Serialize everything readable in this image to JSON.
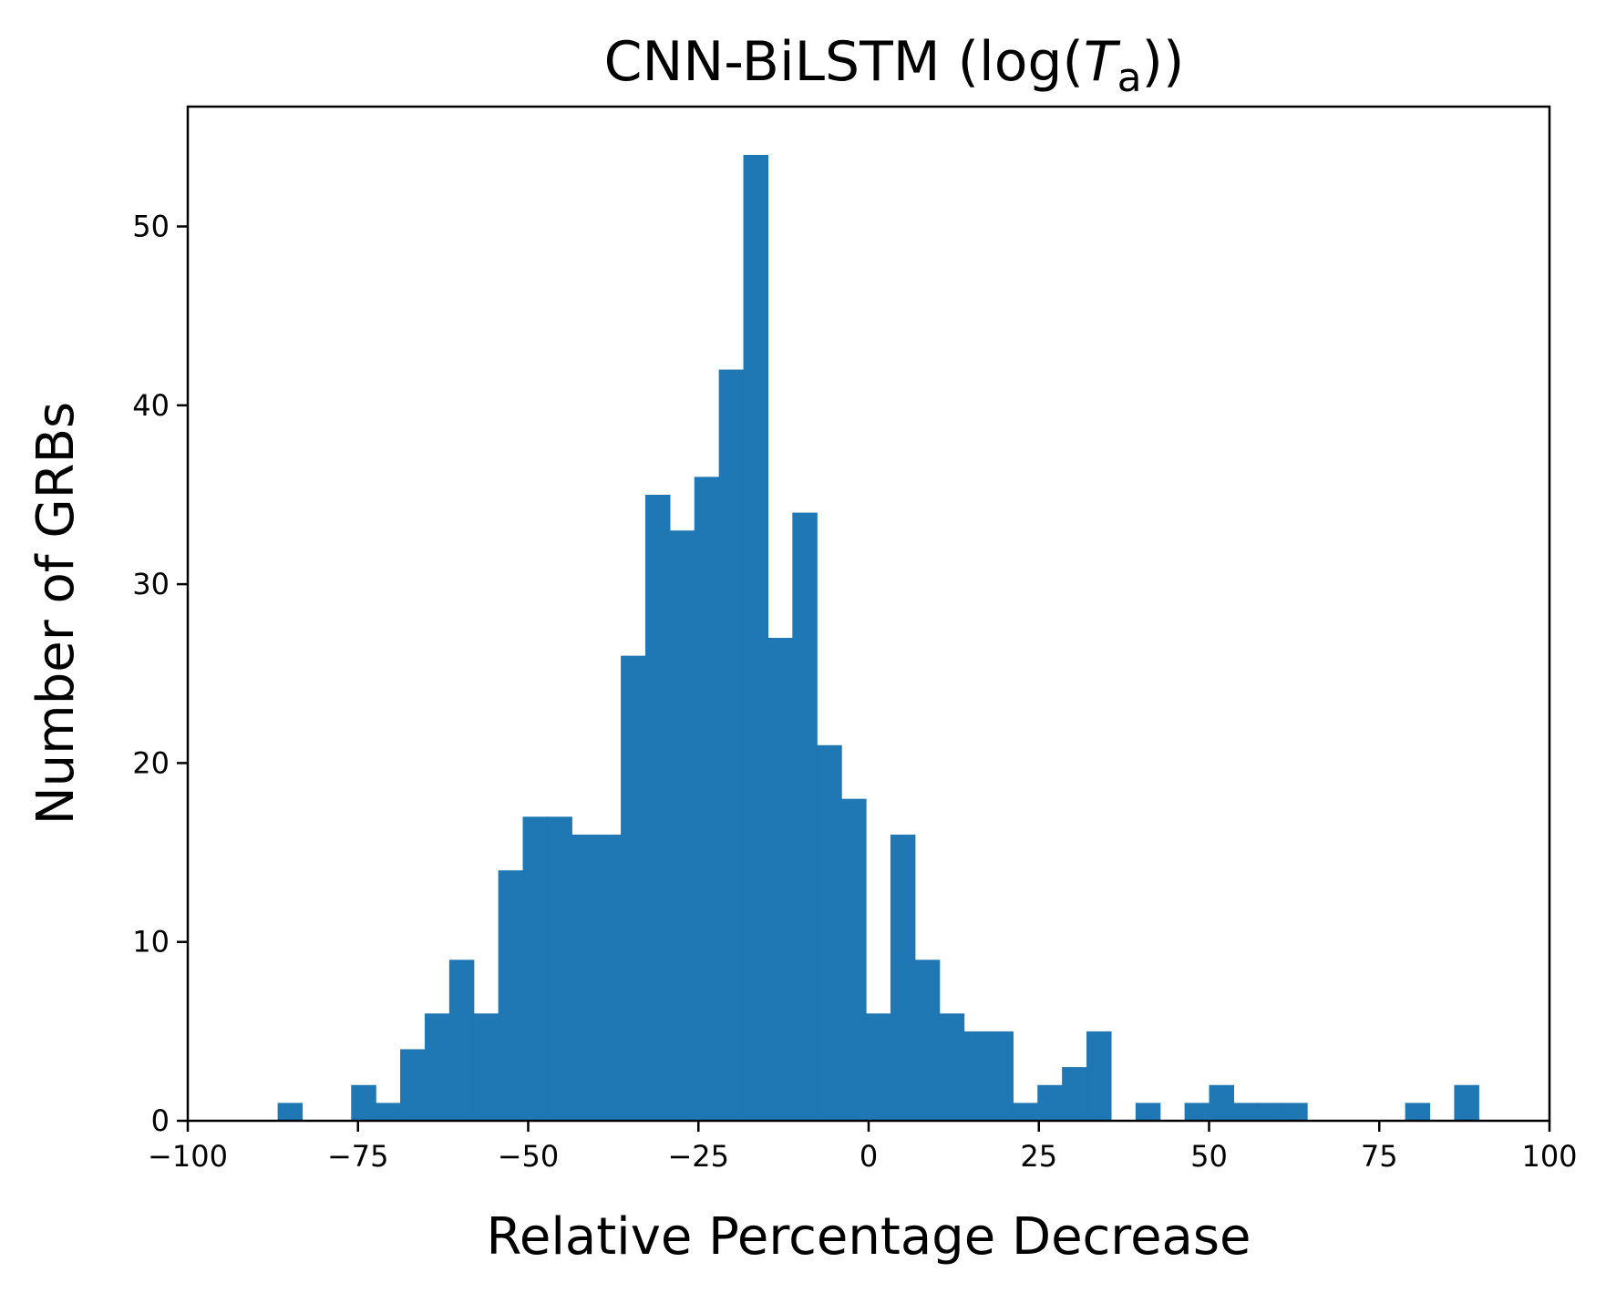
{
  "chart_data": {
    "type": "bar",
    "title_main": "CNN-BiLSTM (log(",
    "title_var": "T",
    "title_sub": "a",
    "title_end": "))",
    "xlabel": "Relative Percentage Decrease",
    "ylabel": "Number of GRBs",
    "xlim": [
      -100,
      100
    ],
    "ylim": [
      0,
      56.7
    ],
    "xticks": [
      -100,
      -75,
      -50,
      -25,
      0,
      25,
      50,
      75,
      100
    ],
    "yticks": [
      0,
      10,
      20,
      30,
      40,
      50
    ],
    "bar_color": "#1f77b4",
    "grid": false,
    "bins": {
      "start": -86.8,
      "width": 3.6,
      "counts": [
        1,
        0,
        0,
        2,
        1,
        4,
        6,
        9,
        6,
        14,
        17,
        17,
        16,
        16,
        26,
        35,
        33,
        36,
        42,
        54,
        27,
        34,
        21,
        18,
        6,
        16,
        9,
        6,
        5,
        5,
        1,
        2,
        3,
        5,
        0,
        1,
        0,
        1,
        2,
        1,
        1,
        1,
        0,
        0,
        0,
        0,
        1,
        0,
        2
      ]
    }
  }
}
